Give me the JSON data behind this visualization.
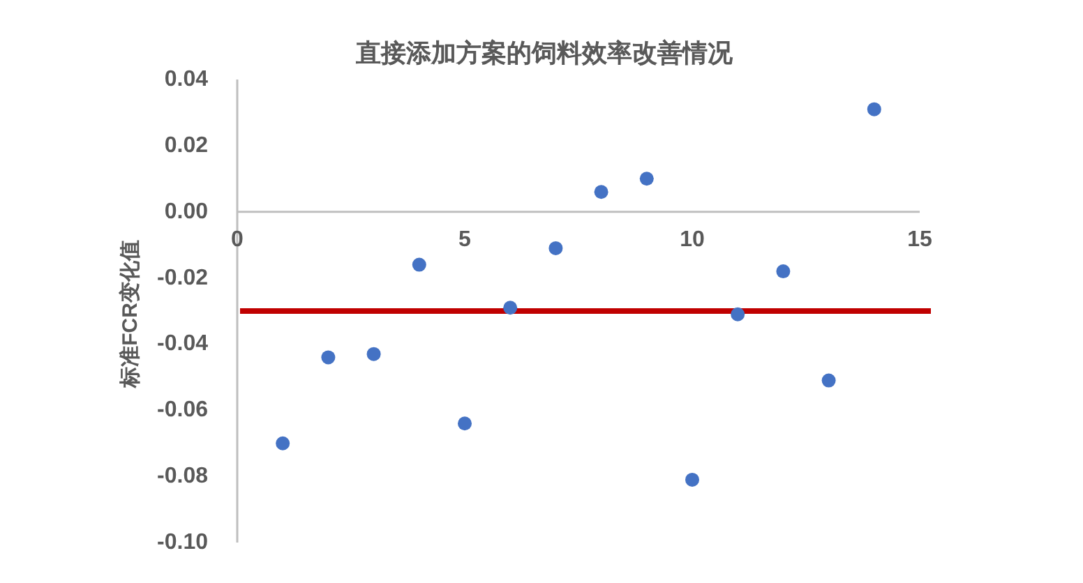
{
  "chart_data": {
    "type": "scatter",
    "title": "直接添加方案的饲料效率改善情况",
    "ylabel": "标准FCR变化值",
    "x": [
      1,
      2,
      3,
      4,
      5,
      6,
      7,
      8,
      9,
      10,
      11,
      12,
      13,
      14
    ],
    "values": [
      -0.07,
      -0.044,
      -0.043,
      -0.016,
      -0.064,
      -0.029,
      -0.011,
      0.006,
      0.01,
      -0.081,
      -0.031,
      -0.018,
      -0.051,
      0.031
    ],
    "color": "#4472c4",
    "marker": "circle",
    "xlim": [
      0,
      15
    ],
    "xticks": [
      0,
      5,
      10,
      15
    ],
    "ylim": [
      -0.1,
      0.04
    ],
    "yticks": [
      0.04,
      0.02,
      {
        "value": 0,
        "label": "0.00"
      },
      -0.02,
      -0.04,
      -0.06,
      -0.08,
      {
        "value": -0.1,
        "label": "-0.10"
      }
    ],
    "ref_lines": [
      {
        "axis": "y",
        "value": -0.03,
        "color": "#c00000"
      }
    ]
  }
}
